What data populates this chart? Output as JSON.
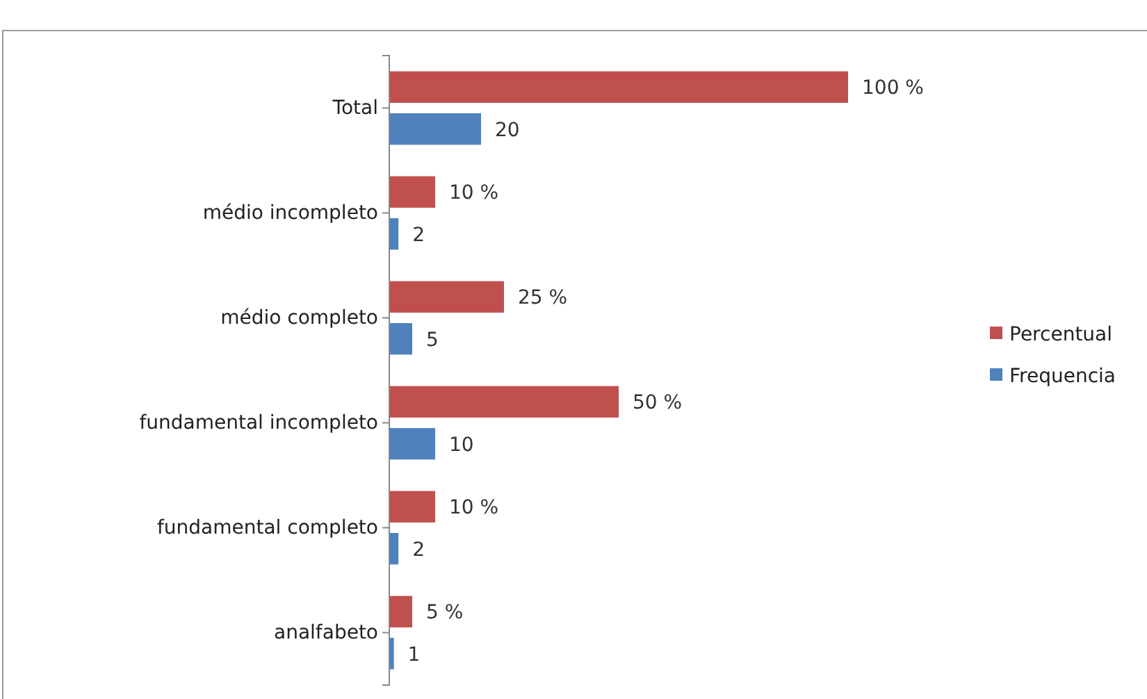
{
  "chart_data": {
    "type": "bar",
    "orientation": "horizontal",
    "categories": [
      "Total",
      "médio incompleto",
      "médio completo",
      "fundamental incompleto",
      "fundamental completo",
      "analfabeto"
    ],
    "series": [
      {
        "name": "Percentual",
        "color": "#c0504d",
        "values": [
          100,
          10,
          25,
          50,
          10,
          5
        ],
        "value_labels": [
          "100 %",
          "10 %",
          "25 %",
          "50 %",
          "10 %",
          "5 %"
        ]
      },
      {
        "name": "Frequencia",
        "color": "#4f81bd",
        "values": [
          20,
          2,
          5,
          10,
          2,
          1
        ],
        "value_labels": [
          "20",
          "2",
          "5",
          "10",
          "2",
          "1"
        ]
      }
    ],
    "legend": "right",
    "grid": false,
    "tick_labels": "y"
  }
}
